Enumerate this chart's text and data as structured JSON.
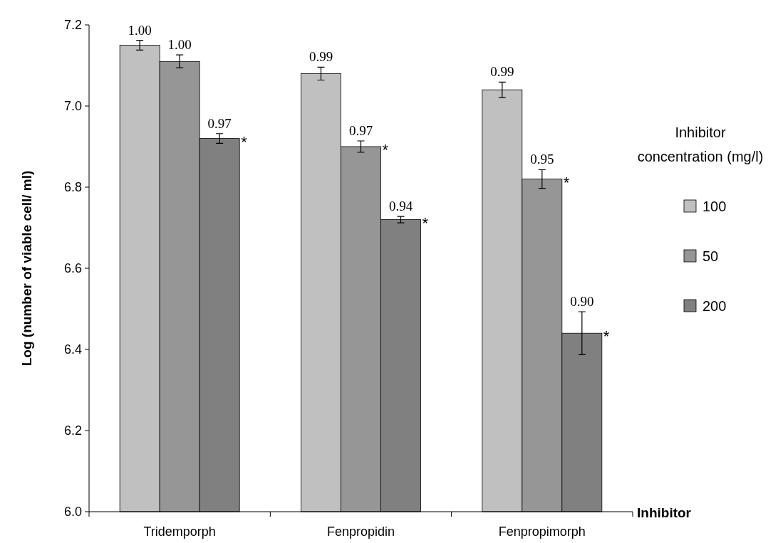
{
  "chart_data": {
    "type": "bar",
    "xlabel": "Inhibitor",
    "ylabel": "Log (number of viable cell/ ml)",
    "legend_title": "Inhibitor concentration (mg/l)",
    "categories": [
      "Tridemporph",
      "Fenpropidin",
      "Fenpropimorph"
    ],
    "series": [
      {
        "name": "100",
        "color": "#c0c0c0",
        "values": [
          7.15,
          7.08,
          7.04
        ],
        "errors": [
          0.012,
          0.016,
          0.019
        ]
      },
      {
        "name": "50",
        "color": "#969696",
        "values": [
          7.11,
          6.9,
          6.82
        ],
        "errors": [
          0.016,
          0.014,
          0.023
        ]
      },
      {
        "name": "200",
        "color": "#808080",
        "values": [
          6.92,
          6.72,
          6.44
        ],
        "errors": [
          0.012,
          0.008,
          0.053
        ]
      }
    ],
    "annotations": [
      "1.00",
      "0.99",
      "0.99",
      "1.00",
      "0.97",
      "*",
      "0.95",
      "*",
      "0.97",
      "*",
      "0.94",
      "*",
      "0.90",
      "*"
    ],
    "ylim": [
      6.0,
      7.2
    ],
    "yticks": [
      {
        "value": 6.0,
        "label": "6.0"
      },
      6.2,
      6.4,
      6.6,
      6.8,
      {
        "value": 7.0,
        "label": "7.0"
      },
      7.2
    ],
    "legend": "right",
    "grid": false
  }
}
